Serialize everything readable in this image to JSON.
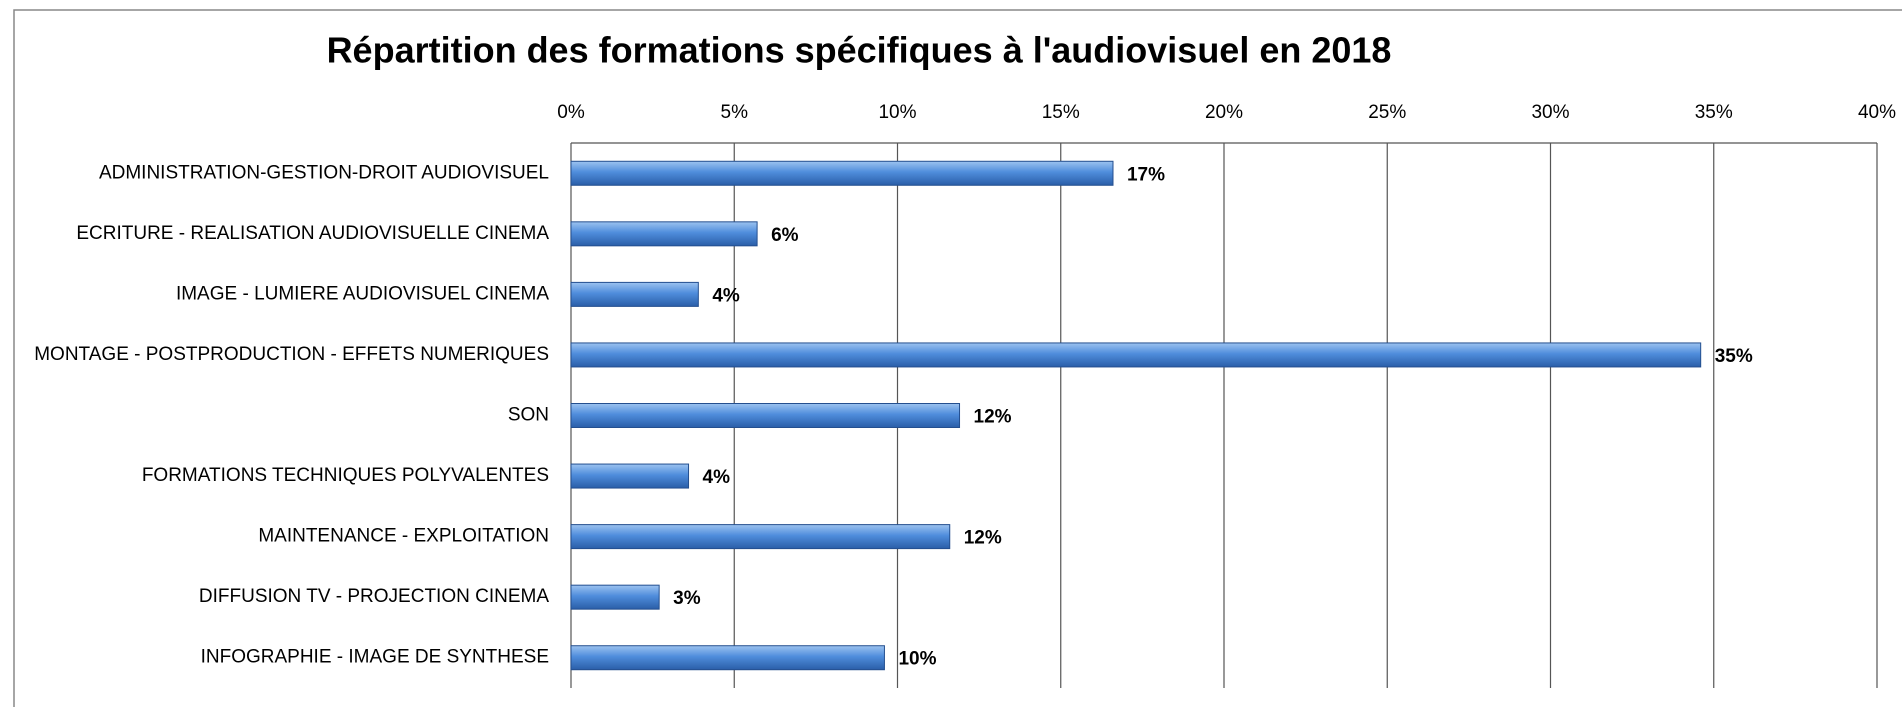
{
  "chart_data": {
    "type": "bar",
    "orientation": "horizontal",
    "title": "Répartition des formations spécifiques à l'audiovisuel en 2018",
    "categories": [
      "ADMINISTRATION-GESTION-DROIT AUDIOVISUEL",
      "ECRITURE - REALISATION AUDIOVISUELLE CINEMA",
      "IMAGE - LUMIERE AUDIOVISUEL CINEMA",
      "MONTAGE - POSTPRODUCTION - EFFETS NUMERIQUES",
      "SON",
      "FORMATIONS TECHNIQUES POLYVALENTES",
      "MAINTENANCE - EXPLOITATION",
      "DIFFUSION TV - PROJECTION CINEMA",
      "INFOGRAPHIE - IMAGE DE SYNTHESE"
    ],
    "values": [
      16.6,
      5.7,
      3.9,
      34.6,
      11.9,
      3.6,
      11.6,
      2.7,
      9.6
    ],
    "value_labels": [
      "17%",
      "6%",
      "4%",
      "35%",
      "12%",
      "4%",
      "12%",
      "3%",
      "10%"
    ],
    "color": "#3f7fd0",
    "xlim": [
      0,
      40
    ],
    "xticks": [
      {
        "value": 0,
        "label": "0%"
      },
      {
        "value": 5,
        "label": "5%"
      },
      {
        "value": 10,
        "label": "10%"
      },
      {
        "value": 15,
        "label": "15%"
      },
      {
        "value": 20,
        "label": "20%"
      },
      {
        "value": 25,
        "label": "25%"
      },
      {
        "value": 30,
        "label": "30%"
      },
      {
        "value": 35,
        "label": "35%"
      },
      {
        "value": 40,
        "label": "40%"
      }
    ],
    "grid": true
  }
}
